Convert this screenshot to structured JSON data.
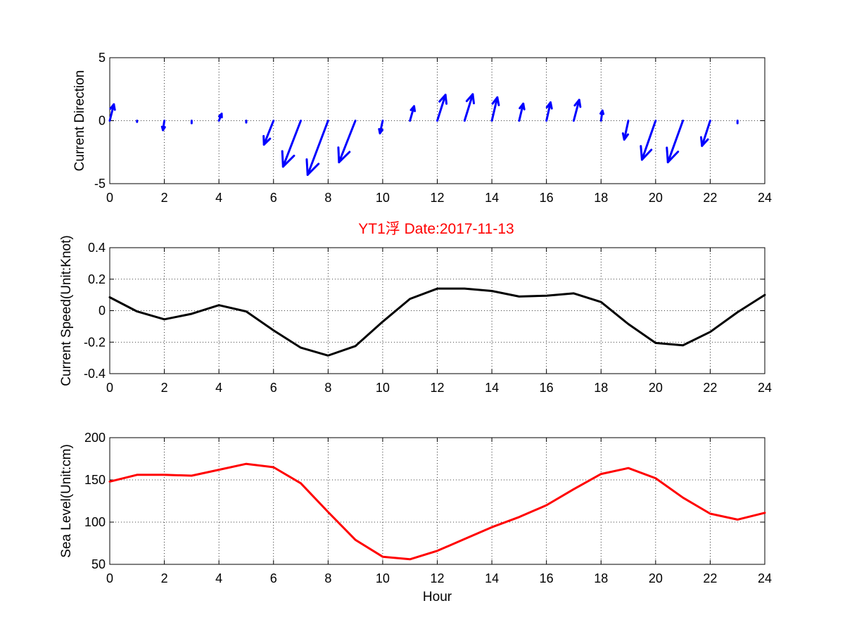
{
  "title": "YT1浮    Date:2017-11-13",
  "colors": {
    "direction": "#0000ff",
    "speed": "#000000",
    "sea_level": "#ff0000",
    "title": "#ff0000"
  },
  "chart_data": [
    {
      "type": "vector",
      "ylabel": "Current Direction",
      "xlabel": "",
      "xlim": [
        0,
        24
      ],
      "ylim": [
        -5,
        5
      ],
      "xticks": [
        0,
        2,
        4,
        6,
        8,
        10,
        12,
        14,
        16,
        18,
        20,
        22,
        24
      ],
      "yticks": [
        -5,
        0,
        5
      ],
      "grid": true,
      "vectors": [
        {
          "x": 0,
          "u": 0.15,
          "v": 1.3
        },
        {
          "x": 1,
          "u": 0.0,
          "v": -0.1
        },
        {
          "x": 2,
          "u": -0.05,
          "v": -0.75
        },
        {
          "x": 3,
          "u": 0.0,
          "v": -0.2
        },
        {
          "x": 4,
          "u": 0.1,
          "v": 0.55
        },
        {
          "x": 5,
          "u": 0.0,
          "v": -0.15
        },
        {
          "x": 6,
          "u": -0.35,
          "v": -1.9
        },
        {
          "x": 7,
          "u": -0.65,
          "v": -3.65
        },
        {
          "x": 8,
          "u": -0.75,
          "v": -4.3
        },
        {
          "x": 9,
          "u": -0.6,
          "v": -3.3
        },
        {
          "x": 10,
          "u": -0.1,
          "v": -1.0
        },
        {
          "x": 11,
          "u": 0.15,
          "v": 1.15
        },
        {
          "x": 12,
          "u": 0.3,
          "v": 2.05
        },
        {
          "x": 13,
          "u": 0.3,
          "v": 2.1
        },
        {
          "x": 14,
          "u": 0.2,
          "v": 1.85
        },
        {
          "x": 15,
          "u": 0.15,
          "v": 1.35
        },
        {
          "x": 16,
          "u": 0.15,
          "v": 1.45
        },
        {
          "x": 17,
          "u": 0.2,
          "v": 1.65
        },
        {
          "x": 18,
          "u": 0.05,
          "v": 0.8
        },
        {
          "x": 19,
          "u": -0.15,
          "v": -1.5
        },
        {
          "x": 20,
          "u": -0.5,
          "v": -3.1
        },
        {
          "x": 21,
          "u": -0.55,
          "v": -3.3
        },
        {
          "x": 22,
          "u": -0.3,
          "v": -2.0
        },
        {
          "x": 23,
          "u": 0.0,
          "v": -0.2
        }
      ]
    },
    {
      "type": "line",
      "ylabel": "Current Speed(Unit:Knot)",
      "xlabel": "",
      "xlim": [
        0,
        24
      ],
      "ylim": [
        -0.4,
        0.4
      ],
      "xticks": [
        0,
        2,
        4,
        6,
        8,
        10,
        12,
        14,
        16,
        18,
        20,
        22,
        24
      ],
      "yticks": [
        -0.4,
        -0.2,
        0,
        0.2,
        0.4
      ],
      "ytick_labels": [
        "-0.4",
        "-0.2",
        "0",
        "0.2",
        "0.4"
      ],
      "grid": true,
      "x": [
        0,
        1,
        2,
        3,
        4,
        5,
        6,
        7,
        8,
        9,
        10,
        11,
        12,
        13,
        14,
        15,
        16,
        17,
        18,
        19,
        20,
        21,
        22,
        23,
        24
      ],
      "series": [
        {
          "values": [
            0.085,
            -0.005,
            -0.055,
            -0.02,
            0.035,
            -0.005,
            -0.125,
            -0.235,
            -0.285,
            -0.225,
            -0.07,
            0.075,
            0.14,
            0.14,
            0.125,
            0.09,
            0.095,
            0.11,
            0.055,
            -0.085,
            -0.205,
            -0.22,
            -0.135,
            -0.01,
            0.1
          ]
        }
      ]
    },
    {
      "type": "line",
      "ylabel": "Sea Level(Unit:cm)",
      "xlabel": "Hour",
      "xlim": [
        0,
        24
      ],
      "ylim": [
        50,
        200
      ],
      "xticks": [
        0,
        2,
        4,
        6,
        8,
        10,
        12,
        14,
        16,
        18,
        20,
        22,
        24
      ],
      "yticks": [
        50,
        100,
        150,
        200
      ],
      "grid": true,
      "x": [
        0,
        1,
        2,
        3,
        4,
        5,
        6,
        7,
        8,
        9,
        10,
        11,
        12,
        13,
        14,
        15,
        16,
        17,
        18,
        19,
        20,
        21,
        22,
        23,
        24
      ],
      "series": [
        {
          "values": [
            148,
            156,
            156,
            155,
            162,
            169,
            165,
            146,
            112,
            79,
            59,
            56,
            66,
            80,
            94,
            106,
            120,
            139,
            157,
            164,
            152,
            129,
            110,
            103,
            111
          ]
        }
      ]
    }
  ]
}
